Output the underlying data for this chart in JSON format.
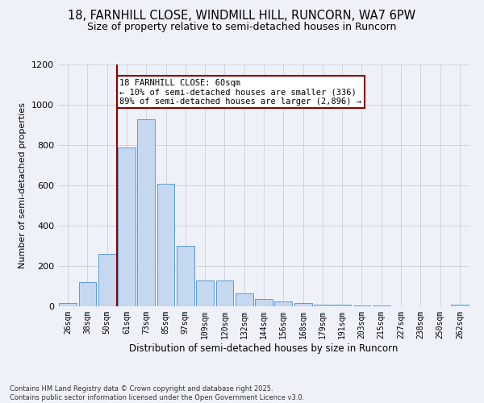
{
  "title_line1": "18, FARNHILL CLOSE, WINDMILL HILL, RUNCORN, WA7 6PW",
  "title_line2": "Size of property relative to semi-detached houses in Runcorn",
  "xlabel": "Distribution of semi-detached houses by size in Runcorn",
  "ylabel": "Number of semi-detached properties",
  "categories": [
    "26sqm",
    "38sqm",
    "50sqm",
    "61sqm",
    "73sqm",
    "85sqm",
    "97sqm",
    "109sqm",
    "120sqm",
    "132sqm",
    "144sqm",
    "156sqm",
    "168sqm",
    "179sqm",
    "191sqm",
    "203sqm",
    "215sqm",
    "227sqm",
    "238sqm",
    "250sqm",
    "262sqm"
  ],
  "values": [
    18,
    120,
    260,
    790,
    930,
    610,
    300,
    130,
    130,
    65,
    38,
    25,
    15,
    10,
    7,
    5,
    3,
    2,
    2,
    1,
    8
  ],
  "bar_color": "#c5d8f0",
  "bar_edge_color": "#5b9bd5",
  "grid_color": "#c8d0dc",
  "vline_color": "#8b0000",
  "annotation_text": "18 FARNHILL CLOSE: 60sqm\n← 10% of semi-detached houses are smaller (336)\n89% of semi-detached houses are larger (2,896) →",
  "annotation_box_color": "#ffffff",
  "annotation_border_color": "#8b0000",
  "ylim": [
    0,
    1200
  ],
  "yticks": [
    0,
    200,
    400,
    600,
    800,
    1000,
    1200
  ],
  "footer_line1": "Contains HM Land Registry data © Crown copyright and database right 2025.",
  "footer_line2": "Contains public sector information licensed under the Open Government Licence v3.0.",
  "bg_color": "#eef2f8",
  "title_fontsize": 10.5,
  "subtitle_fontsize": 9,
  "tick_fontsize": 7,
  "ylabel_fontsize": 8,
  "xlabel_fontsize": 8.5,
  "footer_fontsize": 6,
  "annot_fontsize": 7.5
}
